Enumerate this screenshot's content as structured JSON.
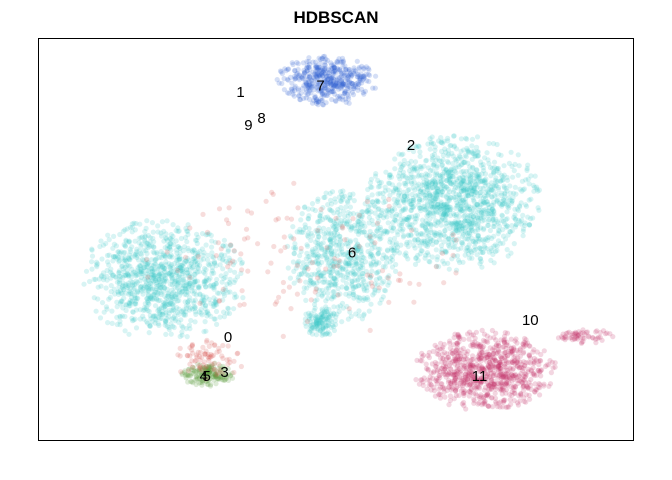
{
  "chart_data": {
    "type": "scatter",
    "title": "HDBSCAN",
    "xlabel": "",
    "ylabel": "",
    "axes_visible": false,
    "grid": false,
    "legend": "none",
    "xlim": [
      0,
      100
    ],
    "ylim": [
      0,
      100
    ],
    "point_alpha": 0.2,
    "colors": {
      "noise": "#d9534f",
      "cluster_6": "#3ec6c9",
      "cluster_7": "#2f5fd0",
      "cluster_11": "#c2306a",
      "cluster_4_5": "#5a9a3a",
      "frame": "#000000"
    },
    "clusters": [
      {
        "label": "0",
        "x": 31.9,
        "y": 25.5
      },
      {
        "label": "1",
        "x": 34.0,
        "y": 86.4
      },
      {
        "label": "2",
        "x": 62.6,
        "y": 73.2
      },
      {
        "label": "3",
        "x": 31.3,
        "y": 16.9
      },
      {
        "label": "4",
        "x": 27.8,
        "y": 15.9
      },
      {
        "label": "5",
        "x": 28.3,
        "y": 15.9
      },
      {
        "label": "6",
        "x": 52.7,
        "y": 46.5
      },
      {
        "label": "7",
        "x": 47.4,
        "y": 88.0
      },
      {
        "label": "8",
        "x": 37.5,
        "y": 79.9
      },
      {
        "label": "9",
        "x": 35.3,
        "y": 78.2
      },
      {
        "label": "10",
        "x": 82.6,
        "y": 29.8
      },
      {
        "label": "11",
        "x": 74.1,
        "y": 15.9
      }
    ],
    "regions": [
      {
        "name": "cluster-6-left-blob",
        "cluster": "6",
        "cx": 21.0,
        "cy": 40.0,
        "rx": 14.0,
        "ry": 15.0,
        "n": 1000
      },
      {
        "name": "cluster-6-right-blob",
        "cluster": "6",
        "cx": 70.0,
        "cy": 59.0,
        "rx": 15.0,
        "ry": 17.0,
        "n": 1300
      },
      {
        "name": "cluster-6-middle-blob",
        "cluster": "6",
        "cx": 51.0,
        "cy": 46.0,
        "rx": 9.5,
        "ry": 17.0,
        "n": 650
      },
      {
        "name": "cluster-6-lower-spot",
        "cluster": "6",
        "cx": 47.5,
        "cy": 29.5,
        "rx": 3.0,
        "ry": 4.0,
        "n": 120
      },
      {
        "name": "cluster-7-blob",
        "cluster": "7",
        "cx": 48.5,
        "cy": 89.5,
        "rx": 8.5,
        "ry": 6.5,
        "n": 450
      },
      {
        "name": "cluster-11-blob",
        "cluster": "11",
        "cx": 75.0,
        "cy": 17.5,
        "rx": 12.0,
        "ry": 10.0,
        "n": 850
      },
      {
        "name": "cluster-11-right-tail",
        "cluster": "11",
        "cx": 92.0,
        "cy": 26.0,
        "rx": 5.0,
        "ry": 1.8,
        "n": 60
      },
      {
        "name": "cluster-4-5-blob",
        "cluster": "4_5",
        "cx": 28.5,
        "cy": 16.5,
        "rx": 4.5,
        "ry": 3.0,
        "n": 170
      },
      {
        "name": "noise-bottom-blob",
        "cluster": "noise",
        "cx": 28.5,
        "cy": 20.0,
        "rx": 6.0,
        "ry": 5.0,
        "n": 80
      },
      {
        "name": "noise-scattered",
        "cluster": "noise",
        "cx": 45.0,
        "cy": 45.0,
        "rx": 30.0,
        "ry": 20.0,
        "n": 120
      }
    ]
  }
}
